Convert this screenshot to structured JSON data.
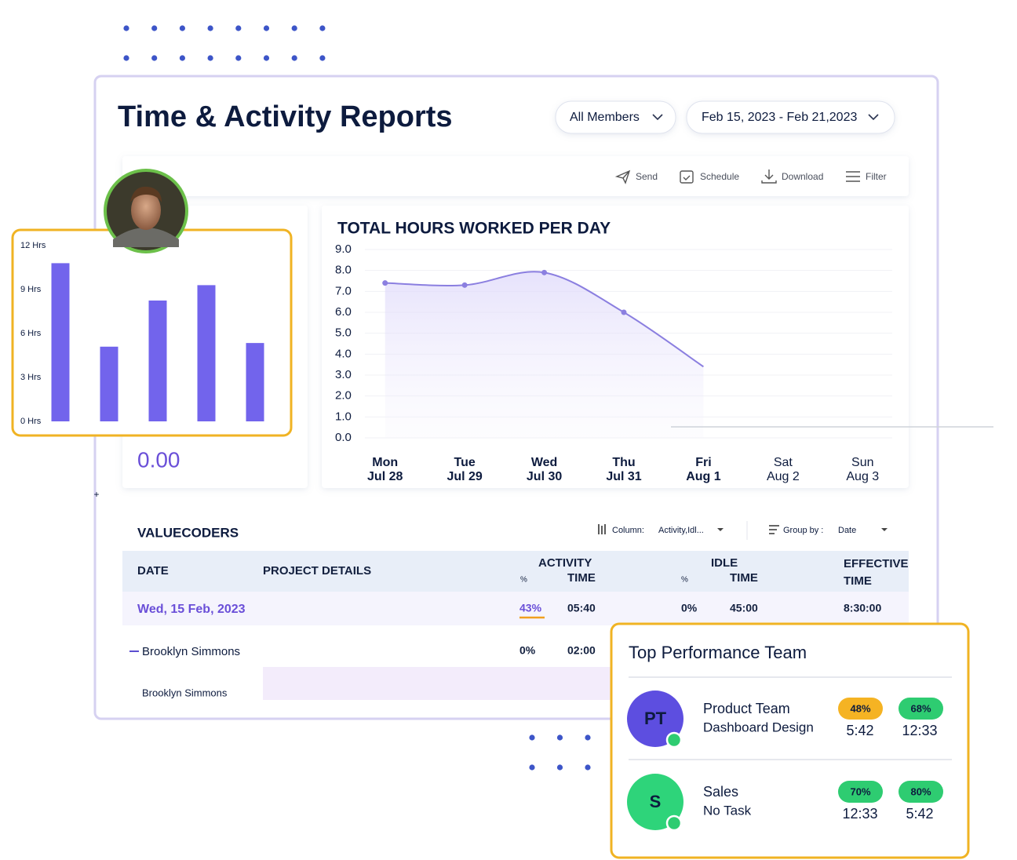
{
  "header": {
    "title": "Time & Activity Reports",
    "members": "All Members",
    "date_range": "Feb 15, 2023 - Feb 21,2023"
  },
  "toolbar": [
    "Send",
    "Schedule",
    "Download",
    "Filter"
  ],
  "summary_value": "0.00",
  "line_chart": {
    "type": "line",
    "title": "TOTAL HOURS WORKED PER DAY",
    "categories": [
      "Mon",
      "Tue",
      "Wed",
      "Thu",
      "Fri",
      "Sat",
      "Sun"
    ],
    "dates": [
      "Jul 28",
      "Jul 29",
      "Jul 30",
      "Jul 31",
      "Aug 1",
      "Aug 2",
      "Aug 3"
    ],
    "values": [
      7.4,
      7.3,
      7.9,
      6.0,
      3.4,
      null,
      null
    ],
    "color": "#8b7fe0",
    "ylim": [
      0,
      9
    ],
    "yticks": [
      {
        "value": 0,
        "label": "0.0"
      },
      {
        "value": 1,
        "label": "1.0"
      },
      {
        "value": 2,
        "label": "2.0"
      },
      {
        "value": 3,
        "label": "3.0"
      },
      {
        "value": 4,
        "label": "4.0"
      },
      {
        "value": 5,
        "label": "5.0"
      },
      {
        "value": 6,
        "label": "6.0"
      },
      {
        "value": 7,
        "label": "7.0"
      },
      {
        "value": 8,
        "label": "8.0"
      },
      {
        "value": 9,
        "label": "9.0"
      }
    ],
    "grid": true
  },
  "bar_chart": {
    "type": "bar",
    "categories": [
      null,
      null,
      null,
      null,
      null
    ],
    "values": [
      10.8,
      5.1,
      8.25,
      9.3,
      5.35
    ],
    "color": "#7264ec",
    "ylim": [
      0,
      12
    ],
    "yticks": [
      {
        "value": 0,
        "label": "0 Hrs"
      },
      {
        "value": 3,
        "label": "3 Hrs"
      },
      {
        "value": 6,
        "label": "6 Hrs"
      },
      {
        "value": 9,
        "label": "9 Hrs"
      },
      {
        "value": 12,
        "label": "12 Hrs"
      }
    ],
    "grid": false
  },
  "table": {
    "title": "VALUECODERS",
    "column_label": "Column:",
    "column_value": "Activity,Idl...",
    "group_label": "Group by :",
    "group_value": "Date",
    "headers": {
      "date": "DATE",
      "project": "PROJECT DETAILS",
      "activity": [
        "ACTIVITY",
        "%",
        "TIME"
      ],
      "idle": [
        "IDLE",
        "%",
        "TIME"
      ],
      "effective": [
        "EFFECTIVE",
        "TIME"
      ]
    },
    "rows": [
      {
        "date": "Wed, 15 Feb, 2023",
        "activity_pct": "43%",
        "activity_time": "05:40",
        "idle_pct": "0%",
        "idle_time": "45:00",
        "effective": "8:30:00",
        "members": [
          {
            "name": "Brooklyn Simmons",
            "activity_pct": "0%",
            "activity_time": "02:00",
            "project": "Brooklyn Simmons"
          }
        ]
      }
    ]
  },
  "top_team": {
    "title": "Top Performance Team",
    "teams": [
      {
        "initials": "PT",
        "name": "Product Team",
        "task": "Dashboard Design",
        "pct1": "48%",
        "time1": "5:42",
        "pct2": "68%",
        "time2": "12:33"
      },
      {
        "initials": "S",
        "name": "Sales",
        "task": "No Task",
        "pct1": "70%",
        "time1": "12:33",
        "pct2": "80%",
        "time2": "5:42"
      }
    ]
  }
}
